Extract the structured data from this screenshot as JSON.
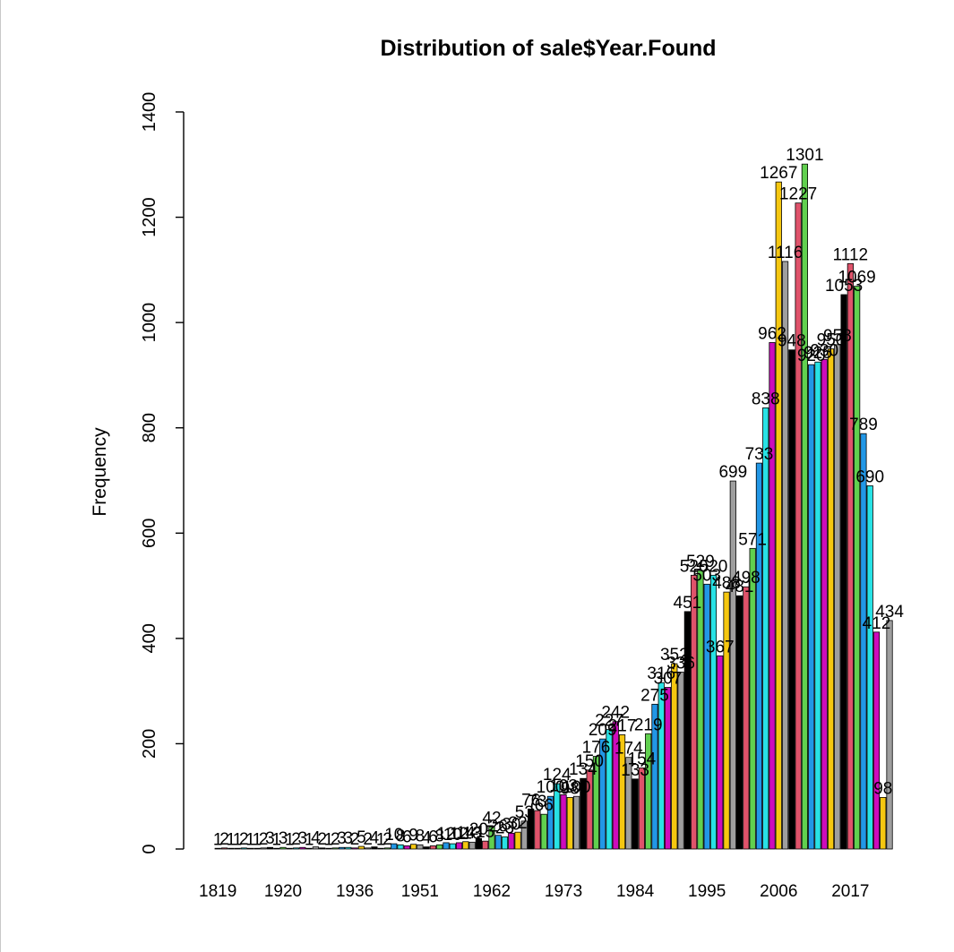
{
  "chart_data": {
    "type": "bar",
    "title": "Distribution of sale$Year.Found",
    "xlabel": "",
    "ylabel": "Frequency",
    "ylim": [
      0,
      1400
    ],
    "yticks": [
      0,
      200,
      400,
      600,
      800,
      1000,
      1200,
      1400
    ],
    "xtick_labels": [
      {
        "label": "1819",
        "index": 0
      },
      {
        "label": "1920",
        "index": 10
      },
      {
        "label": "1936",
        "index": 21
      },
      {
        "label": "1951",
        "index": 31
      },
      {
        "label": "1962",
        "index": 42
      },
      {
        "label": "1973",
        "index": 53
      },
      {
        "label": "1984",
        "index": 64
      },
      {
        "label": "1995",
        "index": 75
      },
      {
        "label": "2006",
        "index": 86
      },
      {
        "label": "2017",
        "index": 97
      }
    ],
    "values": [
      1,
      2,
      1,
      1,
      2,
      1,
      1,
      2,
      3,
      1,
      3,
      1,
      2,
      3,
      1,
      4,
      2,
      1,
      2,
      3,
      3,
      2,
      5,
      2,
      4,
      1,
      2,
      10,
      8,
      6,
      9,
      8,
      4,
      6,
      8,
      12,
      10,
      12,
      14,
      13,
      20,
      15,
      42,
      26,
      23,
      30,
      32,
      53,
      76,
      73,
      66,
      100,
      124,
      103,
      98,
      100,
      134,
      150,
      176,
      209,
      227,
      242,
      217,
      174,
      133,
      154,
      219,
      275,
      316,
      307,
      352,
      336,
      451,
      520,
      529,
      503,
      520,
      367,
      488,
      699,
      481,
      498,
      571,
      733,
      838,
      962,
      1267,
      1116,
      948,
      1227,
      1301,
      920,
      925,
      930,
      950,
      958,
      1053,
      1112,
      1069,
      789,
      690,
      412,
      98,
      434
    ],
    "palette": [
      "#000000",
      "#df536b",
      "#61d04f",
      "#2297e6",
      "#28e2e5",
      "#cd0bbc",
      "#f5c710",
      "#9e9e9e"
    ]
  }
}
